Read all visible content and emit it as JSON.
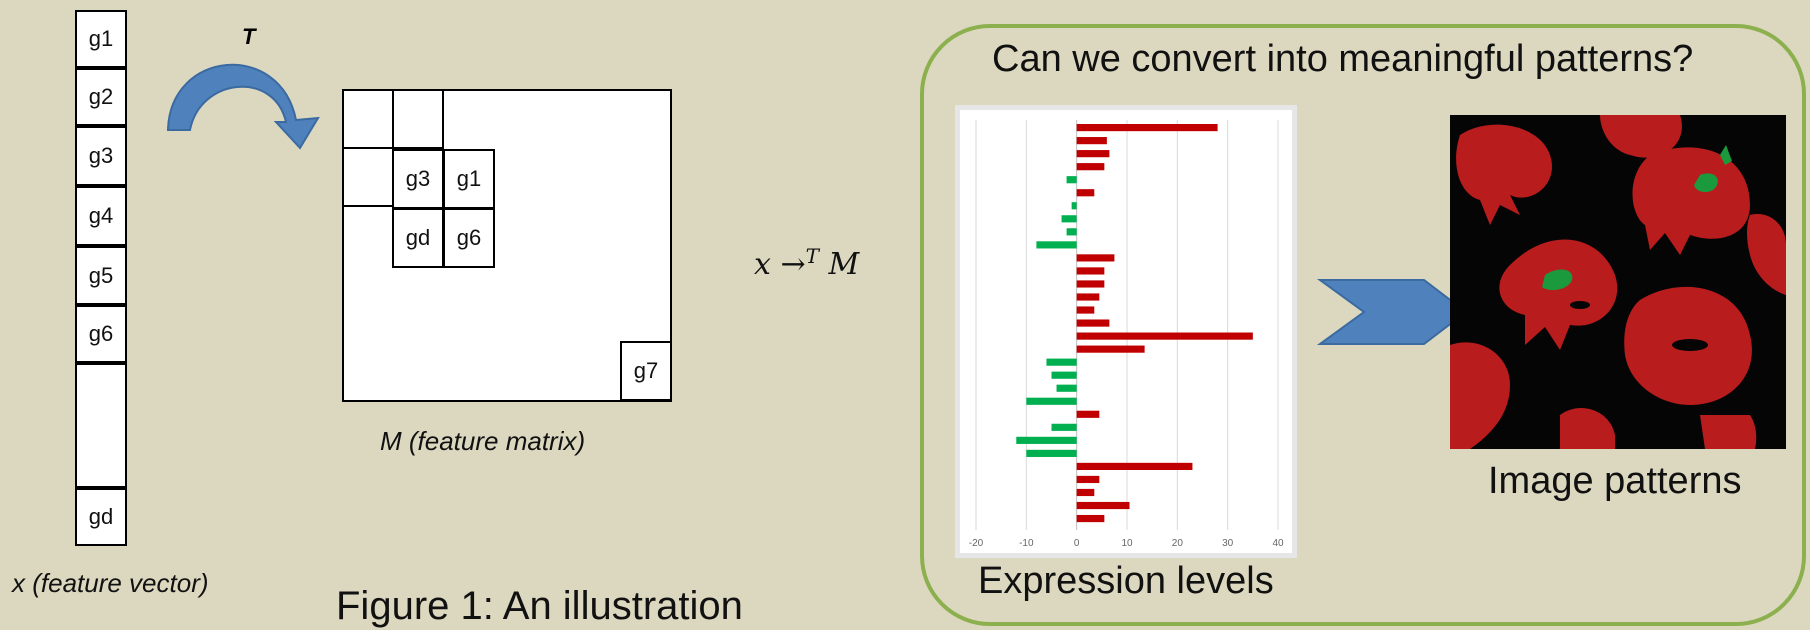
{
  "feature_vector": {
    "cells": [
      "g1",
      "g2",
      "g3",
      "g4",
      "g5",
      "g6",
      "",
      "gd"
    ],
    "caption": "x (feature vector)"
  },
  "transform_label": "T",
  "feature_matrix": {
    "cells": [
      "g3",
      "g1",
      "gd",
      "g6",
      "g7"
    ],
    "caption": "M (feature matrix)"
  },
  "mapping_formula": {
    "x": "x",
    "arrow": "→",
    "sup": "T",
    "m": "M"
  },
  "figure_caption": "Figure 1: An illustration",
  "panel": {
    "title": "Can we convert into meaningful patterns?",
    "chart_label": "Expression levels",
    "image_label": "Image patterns",
    "border_color": "#8db04e"
  },
  "chart_data": {
    "type": "bar",
    "orientation": "horizontal",
    "xlim": [
      -20,
      40
    ],
    "xticks": [
      -20,
      -10,
      0,
      10,
      20,
      30,
      40
    ],
    "grid": true,
    "positive_color": "#c00000",
    "negative_color": "#00b050",
    "values": [
      28,
      6,
      6.5,
      5.5,
      -2,
      3.5,
      -1,
      -3,
      -2,
      -8,
      7.5,
      5.5,
      5.5,
      4.5,
      3.5,
      6.5,
      35,
      13.5,
      -6,
      -5,
      -4,
      -10,
      4.5,
      -5,
      -12,
      -10,
      23,
      4.5,
      3.5,
      10.5,
      5.5
    ]
  },
  "colors": {
    "background": "#dcd8c0",
    "arrow_blue": "#4f81bd"
  }
}
